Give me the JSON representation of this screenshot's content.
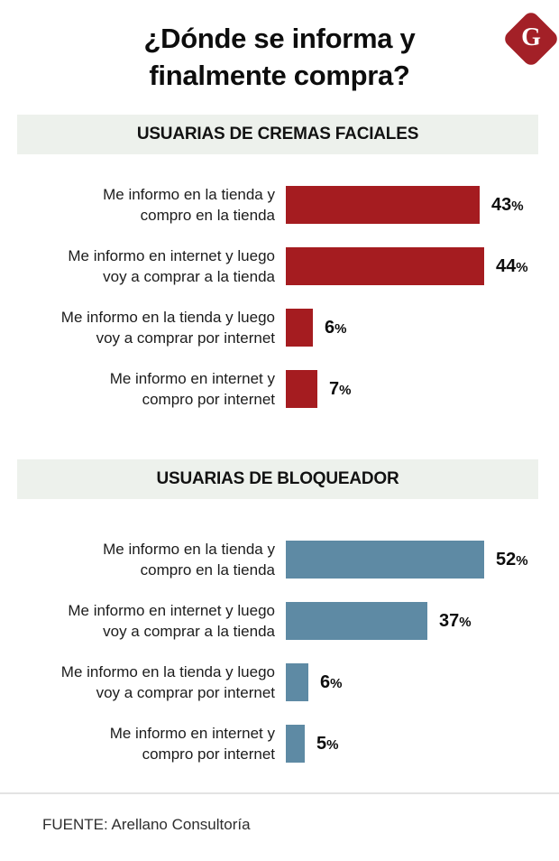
{
  "page": {
    "title_lines": [
      "¿Dónde se informa y",
      "finalmente compra?"
    ],
    "logo_letter": "G",
    "source": "FUENTE: Arellano Consultoría"
  },
  "colors": {
    "cremas_bar": "#a51c20",
    "bloqueador_bar": "#5e8aa4",
    "section_band": "#edf1ec",
    "logo_red": "#a32027",
    "divider": "#e3e3e3"
  },
  "chart_data": [
    {
      "type": "bar",
      "orientation": "horizontal",
      "section_title": "USUARIAS DE CREMAS FACIALES",
      "categories": [
        "Me informo en la tienda y compro en la tienda",
        "Me informo en internet y luego voy a comprar a la tienda",
        "Me informo en la tienda y luego voy a comprar por internet",
        "Me informo en internet y compro por internet"
      ],
      "category_lines": [
        [
          "Me informo en la tienda y",
          "compro en la tienda"
        ],
        [
          "Me informo en internet y luego",
          "voy a comprar a la tienda"
        ],
        [
          "Me informo en la tienda y luego",
          "voy a comprar por internet"
        ],
        [
          "Me informo en internet y",
          "compro por internet"
        ]
      ],
      "values": [
        43,
        44,
        6,
        7
      ],
      "value_labels": [
        "43%",
        "44%",
        "6%",
        "7%"
      ],
      "unit": "%",
      "value_range": [
        0,
        44
      ],
      "bar_color": "#a51c20",
      "grid": false,
      "legend": "none"
    },
    {
      "type": "bar",
      "orientation": "horizontal",
      "section_title": "USUARIAS DE BLOQUEADOR",
      "categories": [
        "Me informo en la tienda y compro en la tienda",
        "Me informo en internet y luego voy a comprar a la tienda",
        "Me informo en la tienda y luego voy a comprar por internet",
        "Me informo en internet y compro por internet"
      ],
      "category_lines": [
        [
          "Me informo en la tienda y",
          "compro en la tienda"
        ],
        [
          "Me informo en internet y luego",
          "voy a comprar a la tienda"
        ],
        [
          "Me informo en la tienda y luego",
          "voy a comprar por internet"
        ],
        [
          "Me informo en internet y",
          "compro por internet"
        ]
      ],
      "values": [
        52,
        37,
        6,
        5
      ],
      "value_labels": [
        "52%",
        "37%",
        "6%",
        "5%"
      ],
      "unit": "%",
      "value_range": [
        0,
        52
      ],
      "bar_color": "#5e8aa4",
      "grid": false,
      "legend": "none"
    }
  ]
}
